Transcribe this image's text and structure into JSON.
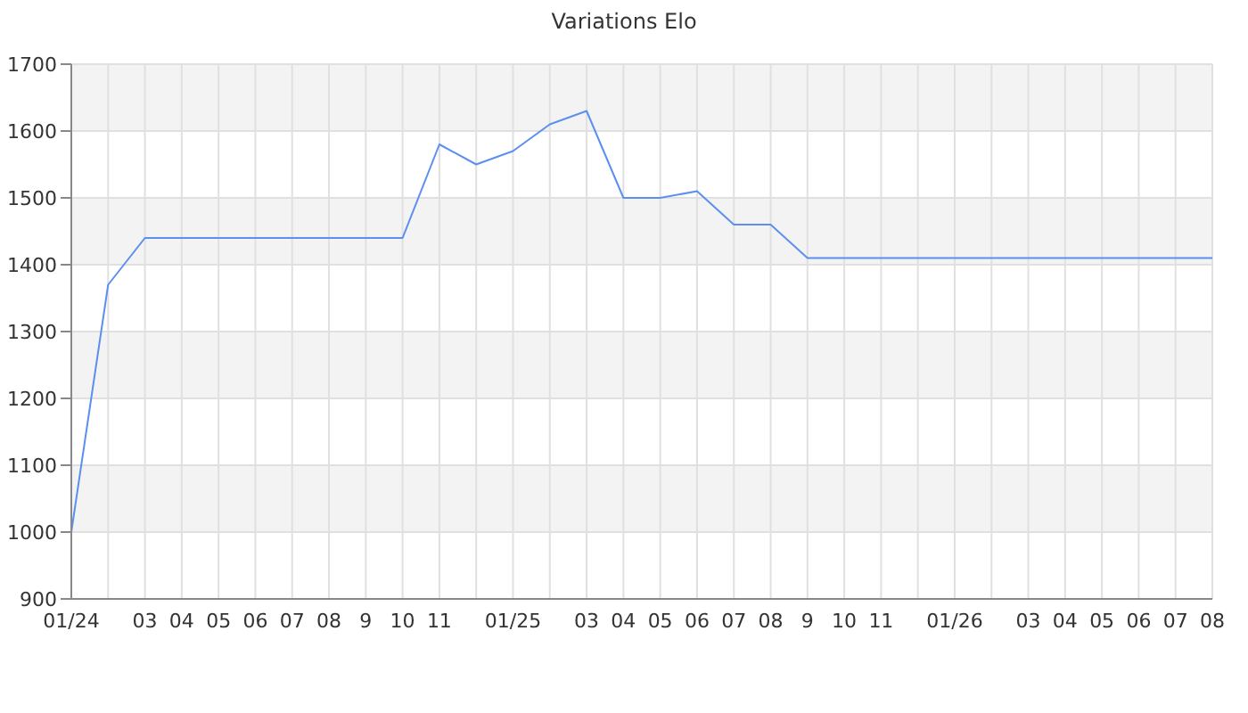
{
  "chart_data": {
    "type": "line",
    "title": "Variations Elo",
    "categories": [
      "01/24",
      null,
      "03",
      "04",
      "05",
      "06",
      "07",
      "08",
      "9",
      "10",
      "11",
      null,
      "01/25",
      null,
      "03",
      "04",
      "05",
      "06",
      "07",
      "08",
      "9",
      "10",
      "11",
      null,
      "01/26",
      null,
      "03",
      "04",
      "05",
      "06",
      "07",
      "08"
    ],
    "series": [
      {
        "color": "#5b8ff0",
        "values": [
          1000,
          1370,
          1440,
          1440,
          1440,
          1440,
          1440,
          1440,
          1440,
          1440,
          1580,
          1550,
          1570,
          1610,
          1630,
          1500,
          1500,
          1510,
          1460,
          1460,
          1410,
          1410,
          1410,
          1410,
          1410,
          1410,
          1410,
          1410,
          1410,
          1410,
          1410,
          1410
        ]
      }
    ],
    "ylim": [
      900,
      1700
    ],
    "yticks": [
      900,
      1000,
      1100,
      1200,
      1300,
      1400,
      1500,
      1600,
      1700
    ],
    "grid": true,
    "legend": false,
    "marker": "none",
    "line_style": "solid"
  }
}
